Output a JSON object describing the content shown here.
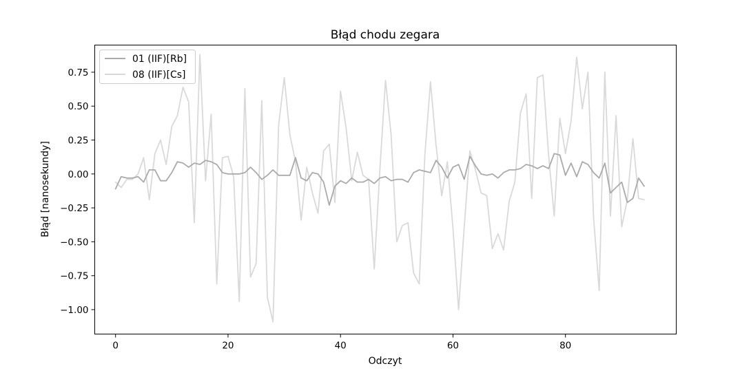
{
  "chart_data": {
    "type": "line",
    "title": "Błąd chodu zegara",
    "xlabel": "Odczyt",
    "ylabel": "Błąd [nanosekundy]",
    "xlim": [
      -3.7,
      99.7
    ],
    "ylim": [
      -1.18,
      0.95
    ],
    "xticks": [
      0,
      20,
      40,
      60,
      80
    ],
    "yticks": [
      -1.0,
      -0.75,
      -0.5,
      -0.25,
      0.0,
      0.25,
      0.5,
      0.75
    ],
    "ytick_labels": [
      "−1.00",
      "−0.75",
      "−0.50",
      "−0.25",
      "0.00",
      "0.25",
      "0.50",
      "0.75"
    ],
    "grid": false,
    "legend_position": "top-left",
    "series": [
      {
        "name": "01 (IIF)[Rb]",
        "color": "#aaaaaa",
        "values": [
          -0.11,
          -0.02,
          -0.03,
          -0.03,
          -0.02,
          -0.06,
          0.03,
          0.03,
          -0.05,
          -0.05,
          0.01,
          0.09,
          0.08,
          0.05,
          0.08,
          0.07,
          0.1,
          0.09,
          0.07,
          0.01,
          0.0,
          0.0,
          0.0,
          0.01,
          0.05,
          0.01,
          -0.04,
          -0.01,
          0.03,
          -0.01,
          -0.01,
          -0.01,
          0.12,
          -0.03,
          -0.05,
          0.01,
          0.0,
          -0.06,
          -0.23,
          -0.09,
          -0.05,
          -0.07,
          -0.03,
          -0.06,
          -0.06,
          -0.04,
          -0.07,
          -0.03,
          -0.02,
          -0.05,
          -0.04,
          -0.04,
          -0.06,
          0.01,
          0.03,
          0.02,
          0.01,
          0.1,
          0.05,
          -0.03,
          0.05,
          0.07,
          -0.04,
          0.13,
          0.06,
          0.0,
          -0.01,
          0.0,
          -0.03,
          0.01,
          0.03,
          0.03,
          0.04,
          0.07,
          0.06,
          0.04,
          0.06,
          0.04,
          0.15,
          0.14,
          -0.01,
          0.08,
          -0.02,
          0.09,
          0.07,
          0.01,
          -0.03,
          0.08,
          -0.14,
          -0.1,
          -0.06,
          -0.21,
          -0.18,
          -0.03,
          -0.09
        ]
      },
      {
        "name": "08 (IIF)[Cs]",
        "color": "#d9d9d9",
        "values": [
          -0.06,
          -0.1,
          -0.04,
          -0.04,
          0.0,
          0.12,
          -0.19,
          0.15,
          0.25,
          0.07,
          0.35,
          0.43,
          0.64,
          0.53,
          -0.36,
          0.88,
          -0.05,
          0.44,
          -0.81,
          0.12,
          0.13,
          -0.02,
          -0.94,
          0.63,
          -0.76,
          -0.66,
          0.54,
          -0.91,
          -1.09,
          0.36,
          0.71,
          0.29,
          0.09,
          -0.34,
          0.05,
          -0.14,
          -0.29,
          0.17,
          0.22,
          -0.21,
          0.61,
          0.34,
          -0.05,
          0.16,
          -0.01,
          -0.04,
          -0.7,
          0.03,
          0.69,
          0.29,
          -0.5,
          -0.38,
          -0.36,
          -0.73,
          -0.81,
          0.14,
          0.68,
          0.21,
          -0.16,
          0.09,
          -0.4,
          -1.0,
          -0.39,
          0.17,
          0.03,
          -0.14,
          -0.16,
          -0.55,
          -0.44,
          -0.56,
          -0.2,
          -0.06,
          0.45,
          0.59,
          -0.18,
          0.71,
          0.73,
          0.14,
          -0.31,
          0.41,
          0.15,
          0.39,
          0.86,
          0.48,
          0.75,
          -0.32,
          -0.86,
          0.75,
          -0.31,
          0.43,
          -0.39,
          -0.19,
          0.26,
          -0.18,
          -0.19
        ]
      }
    ]
  }
}
